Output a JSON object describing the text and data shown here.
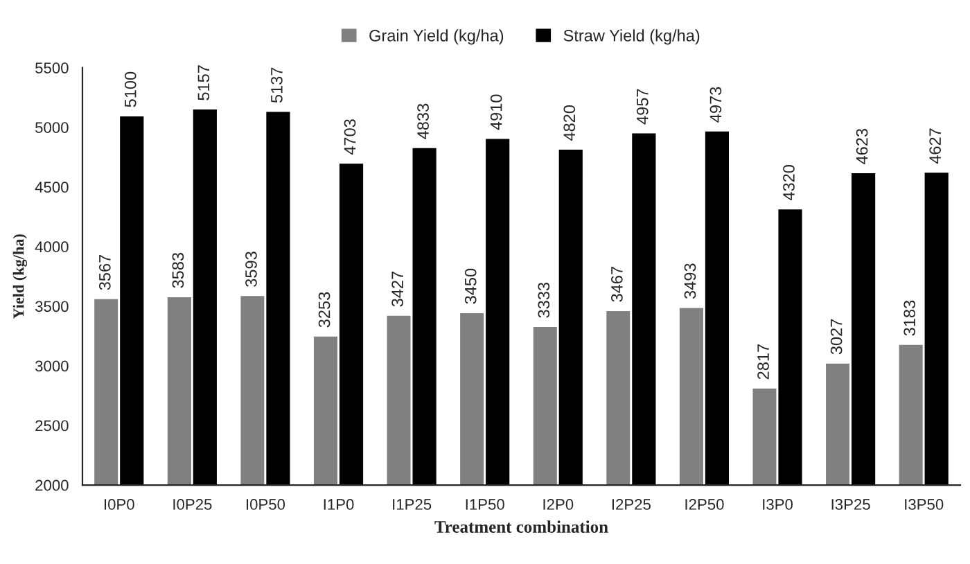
{
  "chart_data": {
    "type": "bar",
    "xlabel": "Treatment combination",
    "ylabel": "Yield (kg/ha)",
    "categories": [
      "I0P0",
      "I0P25",
      "I0P50",
      "I1P0",
      "I1P25",
      "I1P50",
      "I2P0",
      "I2P25",
      "I2P50",
      "I3P0",
      "I3P25",
      "I3P50"
    ],
    "series": [
      {
        "name": "Grain Yield (kg/ha)",
        "color": "#808080",
        "values": [
          3567,
          3583,
          3593,
          3253,
          3427,
          3450,
          3333,
          3467,
          3493,
          2817,
          3027,
          3183
        ]
      },
      {
        "name": "Straw Yield (kg/ha)",
        "color": "#000000",
        "values": [
          5100,
          5157,
          5137,
          4703,
          4833,
          4910,
          4820,
          4957,
          4973,
          4320,
          4623,
          4627
        ]
      }
    ],
    "ylim": [
      2000,
      5500
    ],
    "yticks": [
      2000,
      2500,
      3000,
      3500,
      4000,
      4500,
      5000,
      5500
    ],
    "data_labels": true,
    "legend": "top",
    "grid": false
  }
}
